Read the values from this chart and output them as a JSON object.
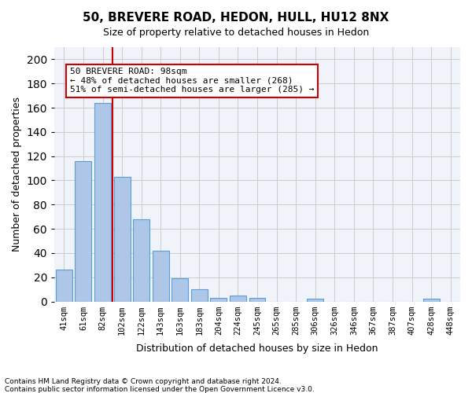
{
  "title1": "50, BREVERE ROAD, HEDON, HULL, HU12 8NX",
  "title2": "Size of property relative to detached houses in Hedon",
  "xlabel": "Distribution of detached houses by size in Hedon",
  "ylabel": "Number of detached properties",
  "bar_color": "#aec6e8",
  "bar_edge_color": "#5a9fd4",
  "categories": [
    "41sqm",
    "61sqm",
    "82sqm",
    "102sqm",
    "122sqm",
    "143sqm",
    "163sqm",
    "183sqm",
    "204sqm",
    "224sqm",
    "245sqm",
    "265sqm",
    "285sqm",
    "306sqm",
    "326sqm",
    "346sqm",
    "367sqm",
    "387sqm",
    "407sqm",
    "428sqm",
    "448sqm"
  ],
  "values": [
    26,
    116,
    164,
    103,
    68,
    42,
    19,
    10,
    3,
    5,
    3,
    0,
    0,
    2,
    0,
    0,
    0,
    0,
    0,
    2,
    0
  ],
  "ylim": [
    0,
    210
  ],
  "yticks": [
    0,
    20,
    40,
    60,
    80,
    100,
    120,
    140,
    160,
    180,
    200
  ],
  "property_size": 98,
  "property_label": "50 BREVERE ROAD: 98sqm",
  "annotation_line1": "← 48% of detached houses are smaller (268)",
  "annotation_line2": "51% of semi-detached houses are larger (285) →",
  "vline_x": 2,
  "vline_color": "#cc0000",
  "annotation_box_color": "#cc0000",
  "footer1": "Contains HM Land Registry data © Crown copyright and database right 2024.",
  "footer2": "Contains public sector information licensed under the Open Government Licence v3.0.",
  "background_color": "#f0f4fa",
  "grid_color": "#cccccc"
}
